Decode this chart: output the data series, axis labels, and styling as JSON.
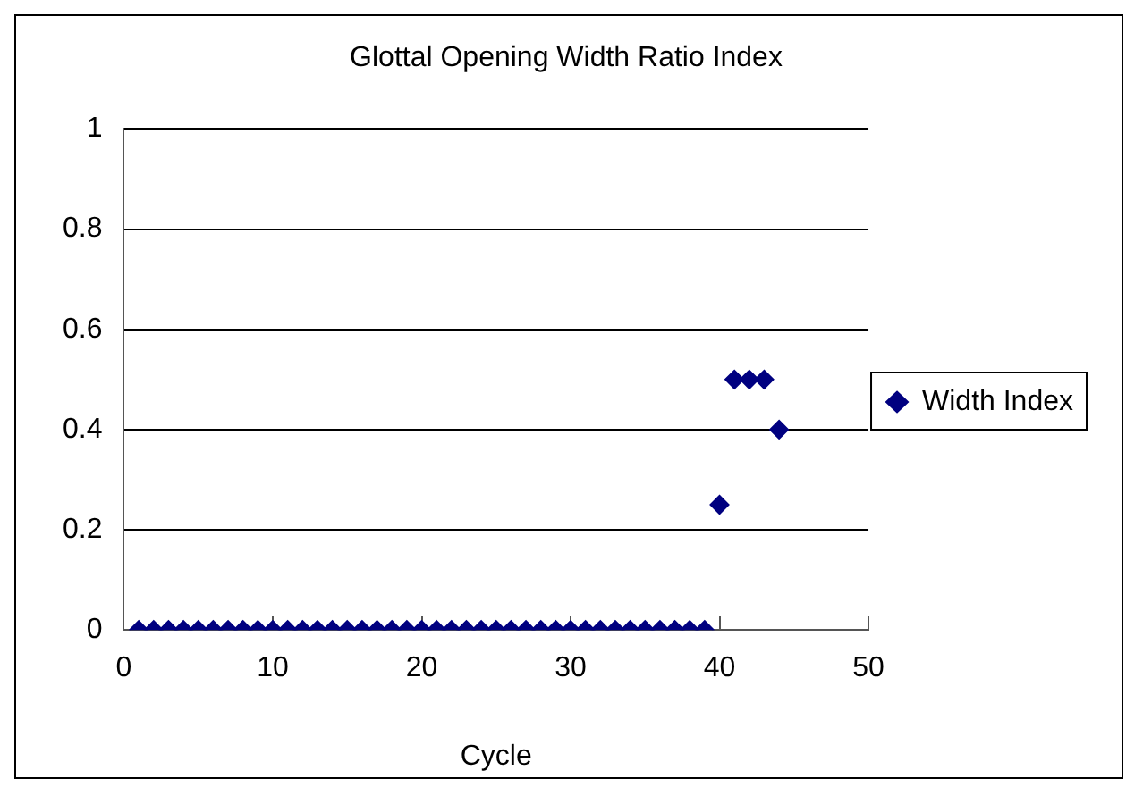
{
  "chart_data": {
    "type": "scatter",
    "title": "Glottal Opening Width Ratio Index",
    "xlabel": "Cycle",
    "x": [
      1,
      2,
      3,
      4,
      5,
      6,
      7,
      8,
      9,
      10,
      11,
      12,
      13,
      14,
      15,
      16,
      17,
      18,
      19,
      20,
      21,
      22,
      23,
      24,
      25,
      26,
      27,
      28,
      29,
      30,
      31,
      32,
      33,
      34,
      35,
      36,
      37,
      38,
      39,
      40,
      41,
      42,
      43,
      44
    ],
    "series": [
      {
        "name": "Width Index",
        "color": "#000080",
        "values": [
          0,
          0,
          0,
          0,
          0,
          0,
          0,
          0,
          0,
          0,
          0,
          0,
          0,
          0,
          0,
          0,
          0,
          0,
          0,
          0,
          0,
          0,
          0,
          0,
          0,
          0,
          0,
          0,
          0,
          0,
          0,
          0,
          0,
          0,
          0,
          0,
          0,
          0,
          0,
          0.25,
          0.5,
          0.5,
          0.5,
          0.4
        ]
      }
    ],
    "xlim": [
      0,
      50
    ],
    "xticks": [
      0,
      10,
      20,
      30,
      40,
      50
    ],
    "ylim": [
      0,
      1
    ],
    "yticks": [
      0,
      0.2,
      0.4,
      0.6,
      0.8,
      1
    ],
    "grid": "y",
    "legend": "right",
    "marker": "diamond"
  }
}
